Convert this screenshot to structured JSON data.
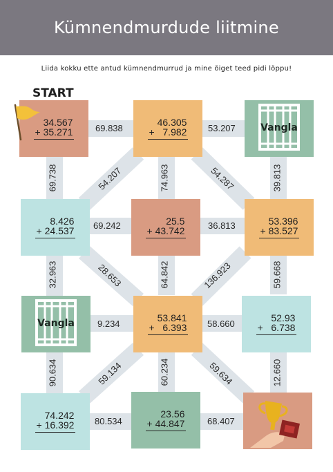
{
  "title": "Kümnendmurdude liitmine",
  "instruction": "Liida kokku ette antud kümnendmurrud ja mine õiget teed pidi lõppu!",
  "start_label": "START",
  "jail_label": "Vangla",
  "colors": {
    "header": "#7b7880",
    "peach": "#f0bb77",
    "terra": "#d99b82",
    "aqua": "#bde3e2",
    "sage": "#94bfa8",
    "path": "#dde3e8",
    "flag": "#f3c13a",
    "trophy": "#e8b21f"
  },
  "tiles": {
    "r1c1": {
      "a": "34.567",
      "b": "+ 35.271"
    },
    "r1c2": {
      "a": "46.305",
      "b": "+   7.982"
    },
    "r2c1": {
      "a": "8.426",
      "b": "+ 24.537"
    },
    "r2c2": {
      "a": "25.5",
      "b": "+ 43.742"
    },
    "r2c3": {
      "a": "53.396",
      "b": "+ 83.527"
    },
    "r3c2": {
      "a": "53.841",
      "b": "+   6.393"
    },
    "r3c3": {
      "a": "52.93",
      "b": "+   6.738"
    },
    "r4c1": {
      "a": "74.242",
      "b": "+ 16.392"
    },
    "r4c2": {
      "a": "23.56",
      "b": "+ 44.847"
    }
  },
  "paths": {
    "h_r1_12": "69.838",
    "h_r1_23": "53.207",
    "v_c1_12": "69.738",
    "d_r12_c21": "54.207",
    "v_c2_12": "74.963",
    "d_r12_c23": "54.287",
    "v_c3_12": "39.813",
    "h_r2_12": "69.242",
    "h_r2_23": "36.813",
    "v_c1_23": "32.963",
    "d_r23_c12": "28.653",
    "v_c2_23": "64.842",
    "d_r23_c32": "136.923",
    "v_c3_23": "59.668",
    "h_r3_12": "9.234",
    "h_r3_23": "58.660",
    "v_c1_34": "90.634",
    "d_r34_c21": "59.134",
    "v_c2_34": "60.234",
    "d_r34_c23": "59.634",
    "v_c3_34": "12.660",
    "h_r4_12": "80.534",
    "h_r4_23": "68.407"
  }
}
